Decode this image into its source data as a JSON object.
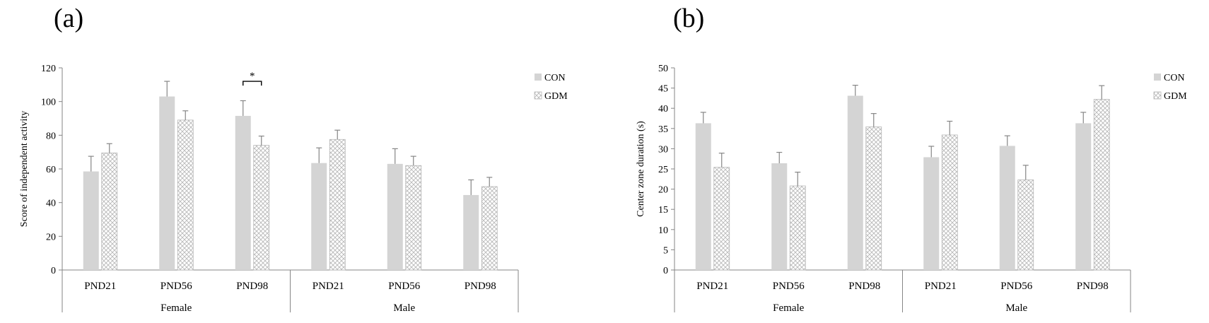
{
  "colors": {
    "con_fill": "#d4d4d4",
    "gdm_stroke": "#b5b5b5",
    "axis": "#868686",
    "error_bar": "#868686"
  },
  "chart_data": [
    {
      "panel_label": "(a)",
      "type": "bar",
      "ylabel": "Score of independent  activity",
      "ylim": [
        0,
        120
      ],
      "yticks": [
        0,
        20,
        40,
        60,
        80,
        100,
        120
      ],
      "categories": [
        "PND21",
        "PND56",
        "PND98",
        "PND21",
        "PND56",
        "PND98"
      ],
      "groups": [
        {
          "label": "Female",
          "span": [
            0,
            2
          ]
        },
        {
          "label": "Male",
          "span": [
            3,
            5
          ]
        }
      ],
      "series": [
        {
          "name": "CON",
          "values": [
            58.5,
            103,
            91.5,
            63.5,
            63,
            44.5
          ],
          "errors": [
            9,
            9,
            9,
            9,
            9,
            9
          ]
        },
        {
          "name": "GDM",
          "values": [
            69.5,
            89,
            74,
            77.5,
            62,
            49.5
          ],
          "errors": [
            5.5,
            5.5,
            5.5,
            5.5,
            5.5,
            5.5
          ]
        }
      ],
      "annotations": [
        {
          "text": "*",
          "category_index": 2,
          "level": 112
        }
      ],
      "legend": "top-right",
      "grid": false
    },
    {
      "panel_label": "(b)",
      "type": "bar",
      "ylabel": "Center zone duration (s)",
      "ylim": [
        0,
        50
      ],
      "yticks": [
        0,
        5,
        10,
        15,
        20,
        25,
        30,
        35,
        40,
        45,
        50
      ],
      "categories": [
        "PND21",
        "PND56",
        "PND98",
        "PND21",
        "PND56",
        "PND98"
      ],
      "groups": [
        {
          "label": "Female",
          "span": [
            0,
            2
          ]
        },
        {
          "label": "Male",
          "span": [
            3,
            5
          ]
        }
      ],
      "series": [
        {
          "name": "CON",
          "values": [
            36.3,
            26.4,
            43.1,
            27.9,
            30.7,
            36.3
          ],
          "errors": [
            2.7,
            2.7,
            2.6,
            2.7,
            2.5,
            2.7
          ]
        },
        {
          "name": "GDM",
          "values": [
            25.4,
            20.8,
            35.4,
            33.4,
            22.3,
            42.2
          ],
          "errors": [
            3.5,
            3.4,
            3.3,
            3.4,
            3.6,
            3.4
          ]
        }
      ],
      "annotations": [],
      "legend": "top-right",
      "grid": false
    }
  ]
}
